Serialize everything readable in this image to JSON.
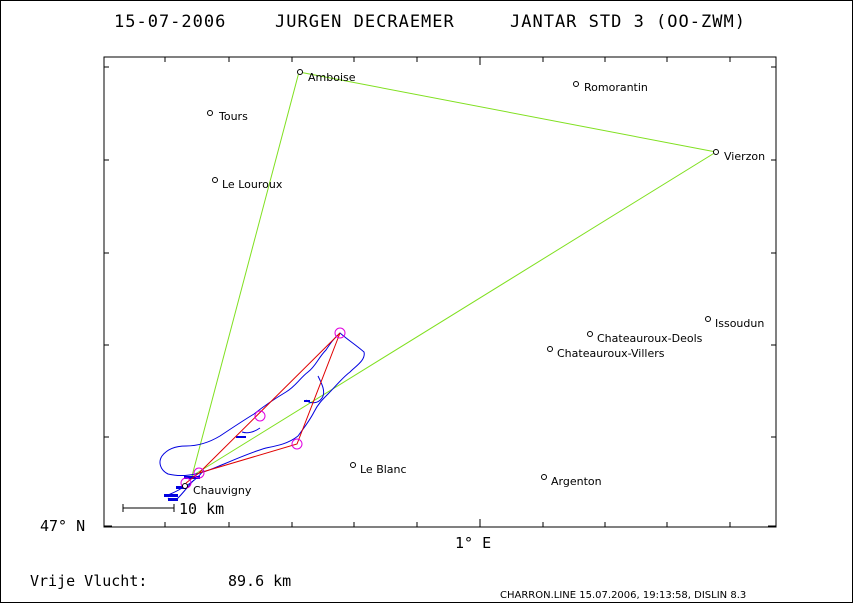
{
  "header": {
    "date": "15-07-2006",
    "pilot": "JURGEN DECRAEMER",
    "glider": "JANTAR STD 3 (OO-ZWM)"
  },
  "axes": {
    "y_label": "47° N",
    "x_label": "1° E"
  },
  "scale_bar": {
    "label": "10 km"
  },
  "cities": [
    {
      "name": "Amboise"
    },
    {
      "name": "Romorantin"
    },
    {
      "name": "Tours"
    },
    {
      "name": "Vierzon"
    },
    {
      "name": "Le Louroux"
    },
    {
      "name": "Issoudun"
    },
    {
      "name": "Chateauroux-Deols"
    },
    {
      "name": "Chateauroux-Villers"
    },
    {
      "name": "Le Blanc"
    },
    {
      "name": "Argenton"
    },
    {
      "name": "Chauvigny"
    }
  ],
  "footer": {
    "distance_label": "Vrije Vlucht:",
    "distance_value": "89.6 km",
    "credit": "CHARRON.LINE 15.07.2006, 19:13:58, DISLIN 8.3"
  },
  "colors": {
    "frame": "#000000",
    "declared_task": "#80e020",
    "flown_task": "#e00000",
    "track": "#0000e0",
    "turnpoint_circle": "#e000e0"
  }
}
